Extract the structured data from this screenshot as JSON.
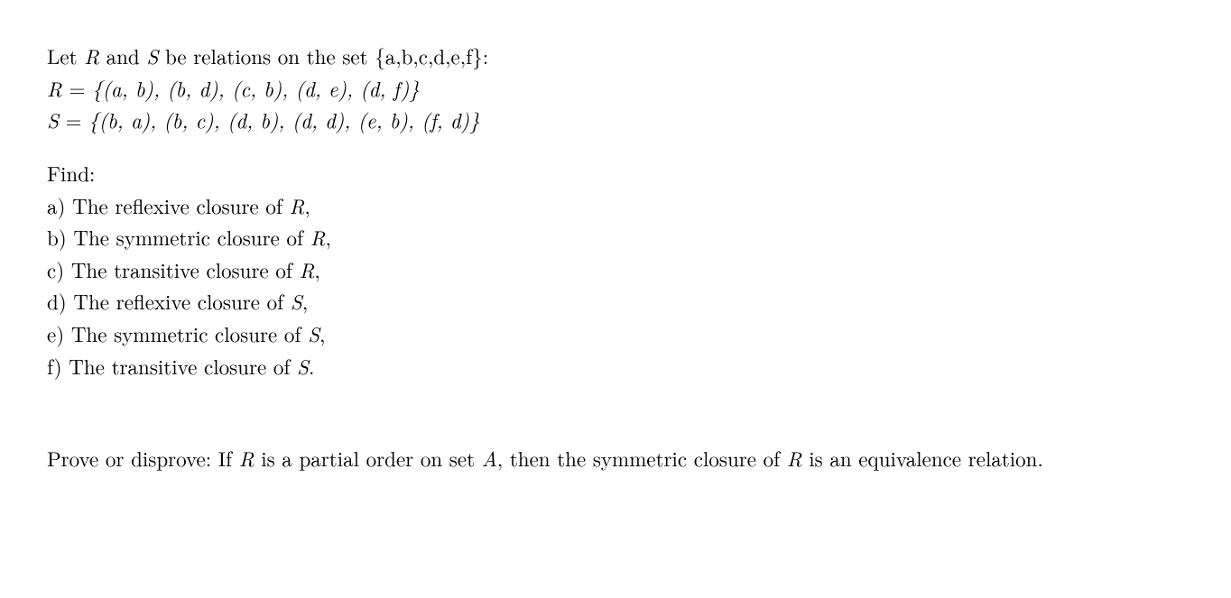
{
  "problem1": {
    "intro_prefix": "Let ",
    "R_name": "R",
    "and_text": " and ",
    "S_name": "S",
    "intro_suffix": " be relations on the set {a,b,c,d,e,f}:",
    "R_def_lhs": "R",
    "equals": " = ",
    "R_def_rhs": "{(a, b), (b, d), (c, b), (d, e), (d, f)}",
    "S_def_lhs": "S",
    "S_def_rhs": "{(b, a), (b, c), (d, b), (d, d), (e, b), (f, d)}",
    "find_label": "Find:",
    "items": [
      {
        "label": "a)",
        "pre": " The reflexive closure of ",
        "sym": "R",
        "post": ","
      },
      {
        "label": "b)",
        "pre": " The symmetric closure of ",
        "sym": "R",
        "post": ","
      },
      {
        "label": "c)",
        "pre": " The transitive closure of ",
        "sym": "R",
        "post": ","
      },
      {
        "label": "d)",
        "pre": " The reflexive closure of ",
        "sym": "S",
        "post": ","
      },
      {
        "label": "e)",
        "pre": " The symmetric closure of ",
        "sym": "S",
        "post": ","
      },
      {
        "label": "f)",
        "pre": " The transitive closure of ",
        "sym": "S",
        "post": "."
      }
    ]
  },
  "problem2": {
    "t1": "Prove or disprove:  If ",
    "R": "R",
    "t2": " is a partial order on set ",
    "A": "A",
    "t3": ", then the symmetric closure of ",
    "t4": " is an equivalence relation."
  }
}
